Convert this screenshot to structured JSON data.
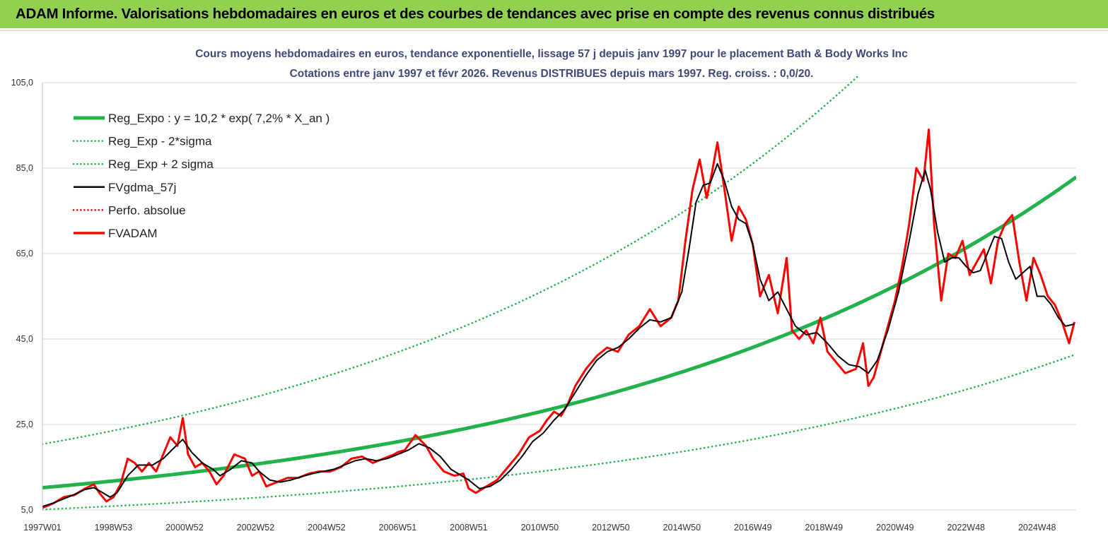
{
  "banner": {
    "title": "ADAM Informe. Valorisations hebdomadaires en euros et des courbes de tendances avec prise en compte des revenus connus distribués"
  },
  "colors": {
    "banner_bg": "#92d050",
    "reg_expo": "#21b24b",
    "sigma_bands": "#21b24b",
    "fvgdma": "#000000",
    "perfo": "#e00000",
    "fvadam": "#ff0000"
  },
  "chart_data": {
    "type": "line",
    "subtitle_line1": "Cours moyens hebdomadaires en euros, tendance exponentielle, lissage 57 j depuis janv 1997 pour le placement Bath & Body Works Inc",
    "subtitle_line2": "Cotations entre janv 1997 et févr 2026. Revenus DISTRIBUES depuis mars 1997. Reg. croiss. : 0,0/20.",
    "ylim": [
      5,
      105
    ],
    "yticks": [
      "105,0",
      "85,0",
      "65,0",
      "45,0",
      "25,0",
      "5,0"
    ],
    "ytick_values": [
      105,
      85,
      65,
      45,
      25,
      5
    ],
    "xlim": [
      1997.0,
      2026.1
    ],
    "xticks": [
      "1997W01",
      "1998W53",
      "2000W52",
      "2002W52",
      "2004W52",
      "2006W51",
      "2008W51",
      "2010W50",
      "2012W50",
      "2014W50",
      "2016W49",
      "2018W49",
      "2020W49",
      "2022W48",
      "2024W48"
    ],
    "xtick_values": [
      1997.0,
      1999.0,
      2001.0,
      2003.0,
      2005.0,
      2007.0,
      2009.0,
      2011.0,
      2013.0,
      2015.0,
      2017.0,
      2019.0,
      2021.0,
      2023.0,
      2025.0
    ],
    "grid": true,
    "legend_position": "top-left",
    "legend": [
      {
        "label": "Reg_Expo : y = 10,2 * exp( 7,2% *  X_an )",
        "style": "solid-thick",
        "color": "#21b24b"
      },
      {
        "label": "Reg_Exp - 2*sigma",
        "style": "dotted",
        "color": "#21b24b"
      },
      {
        "label": "Reg_Exp + 2 sigma",
        "style": "dotted",
        "color": "#21b24b"
      },
      {
        "label": "FVgdma_57j",
        "style": "solid",
        "color": "#000000"
      },
      {
        "label": "Perfo. absolue",
        "style": "dotted",
        "color": "#e00000"
      },
      {
        "label": "FVADAM",
        "style": "solid-thick",
        "color": "#ff0000"
      }
    ],
    "regression": {
      "a": 10.2,
      "k": 0.072,
      "lower_factor": 0.5,
      "upper_factor": 2.0
    },
    "fvadam": {
      "x": [
        1997.0,
        1997.3,
        1997.6,
        1997.9,
        1998.2,
        1998.45,
        1998.6,
        1998.8,
        1999.0,
        1999.2,
        1999.4,
        1999.6,
        1999.8,
        2000.0,
        2000.2,
        2000.4,
        2000.6,
        2000.8,
        2000.95,
        2001.1,
        2001.3,
        2001.5,
        2001.7,
        2001.9,
        2002.1,
        2002.4,
        2002.7,
        2002.9,
        2003.1,
        2003.3,
        2003.6,
        2003.9,
        2004.2,
        2004.5,
        2004.8,
        2005.1,
        2005.4,
        2005.7,
        2006.0,
        2006.3,
        2006.6,
        2006.9,
        2007.0,
        2007.2,
        2007.5,
        2007.8,
        2008.0,
        2008.3,
        2008.6,
        2008.85,
        2009.0,
        2009.2,
        2009.5,
        2009.8,
        2010.1,
        2010.4,
        2010.7,
        2011.0,
        2011.2,
        2011.4,
        2011.6,
        2011.8,
        2012.0,
        2012.3,
        2012.6,
        2012.9,
        2013.2,
        2013.5,
        2013.8,
        2014.1,
        2014.4,
        2014.7,
        2014.9,
        2015.1,
        2015.3,
        2015.5,
        2015.7,
        2015.85,
        2016.0,
        2016.2,
        2016.4,
        2016.6,
        2016.8,
        2017.0,
        2017.2,
        2017.45,
        2017.7,
        2017.95,
        2018.1,
        2018.3,
        2018.5,
        2018.7,
        2018.9,
        2019.1,
        2019.3,
        2019.6,
        2019.9,
        2020.1,
        2020.25,
        2020.4,
        2020.6,
        2020.8,
        2021.0,
        2021.2,
        2021.4,
        2021.6,
        2021.8,
        2021.95,
        2022.1,
        2022.3,
        2022.5,
        2022.7,
        2022.9,
        2023.1,
        2023.3,
        2023.5,
        2023.7,
        2023.9,
        2024.1,
        2024.3,
        2024.5,
        2024.7,
        2024.9,
        2025.1,
        2025.3,
        2025.5,
        2025.7,
        2025.9,
        2026.05
      ],
      "y": [
        5.5,
        6.5,
        8.0,
        8.5,
        10.0,
        11.0,
        9.0,
        7.0,
        8.0,
        11.0,
        17.0,
        16.0,
        14.0,
        16.0,
        14.0,
        18.0,
        22.0,
        20.0,
        26.5,
        18.0,
        15.0,
        16.0,
        14.0,
        11.0,
        13.0,
        18.0,
        17.0,
        13.0,
        14.0,
        10.5,
        11.5,
        12.5,
        12.5,
        13.5,
        14.0,
        14.0,
        15.0,
        17.0,
        17.5,
        16.0,
        17.0,
        18.0,
        18.5,
        19.0,
        22.5,
        20.0,
        17.0,
        14.0,
        13.0,
        13.5,
        10.0,
        9.0,
        10.5,
        12.0,
        15.0,
        18.0,
        22.0,
        23.5,
        26.0,
        28.0,
        27.0,
        30.0,
        34.0,
        38.0,
        41.0,
        43.0,
        42.0,
        46.0,
        48.0,
        52.0,
        48.0,
        50.0,
        54.0,
        68.0,
        80.0,
        87.0,
        78.0,
        84.0,
        91.0,
        80.0,
        68.0,
        76.0,
        73.0,
        67.0,
        55.0,
        60.0,
        51.0,
        64.0,
        47.0,
        45.0,
        47.0,
        44.0,
        50.0,
        42.0,
        40.0,
        37.0,
        38.0,
        44.0,
        34.0,
        36.0,
        42.0,
        48.0,
        54.0,
        62.0,
        72.0,
        85.0,
        82.0,
        94.0,
        72.0,
        54.0,
        65.0,
        64.0,
        68.0,
        60.0,
        63.0,
        66.0,
        58.0,
        68.0,
        72.0,
        74.0,
        63.0,
        54.0,
        64.0,
        60.0,
        55.0,
        53.0,
        49.0,
        44.0,
        49.0
      ]
    },
    "fvgdma_57j": {
      "x": [
        1997.0,
        1997.3,
        1997.6,
        1997.9,
        1998.2,
        1998.45,
        1998.7,
        1998.9,
        1999.1,
        1999.4,
        1999.7,
        1999.9,
        2000.1,
        2000.4,
        2000.7,
        2000.95,
        2001.2,
        2001.5,
        2001.8,
        2002.0,
        2002.3,
        2002.6,
        2002.9,
        2003.1,
        2003.4,
        2003.7,
        2004.0,
        2004.3,
        2004.6,
        2004.9,
        2005.2,
        2005.5,
        2005.8,
        2006.1,
        2006.4,
        2006.7,
        2007.0,
        2007.3,
        2007.6,
        2007.9,
        2008.2,
        2008.5,
        2008.8,
        2009.0,
        2009.3,
        2009.6,
        2009.9,
        2010.2,
        2010.5,
        2010.8,
        2011.1,
        2011.4,
        2011.7,
        2012.0,
        2012.3,
        2012.6,
        2012.9,
        2013.2,
        2013.5,
        2013.8,
        2014.1,
        2014.4,
        2014.7,
        2015.0,
        2015.2,
        2015.4,
        2015.6,
        2015.8,
        2016.0,
        2016.2,
        2016.4,
        2016.6,
        2016.8,
        2017.0,
        2017.2,
        2017.45,
        2017.7,
        2017.95,
        2018.2,
        2018.5,
        2018.8,
        2019.1,
        2019.4,
        2019.7,
        2020.0,
        2020.25,
        2020.5,
        2020.8,
        2021.1,
        2021.4,
        2021.65,
        2021.85,
        2022.0,
        2022.2,
        2022.4,
        2022.6,
        2022.8,
        2023.0,
        2023.2,
        2023.4,
        2023.6,
        2023.8,
        2024.0,
        2024.2,
        2024.4,
        2024.6,
        2024.8,
        2025.0,
        2025.2,
        2025.4,
        2025.6,
        2025.8,
        2026.05
      ],
      "y": [
        5.8,
        6.6,
        7.6,
        8.6,
        9.8,
        10.2,
        9.0,
        8.0,
        9.0,
        13.0,
        15.5,
        15.5,
        15.5,
        17.0,
        19.5,
        21.5,
        18.5,
        16.0,
        14.5,
        13.0,
        14.5,
        16.5,
        16.0,
        14.0,
        12.0,
        11.5,
        12.0,
        12.8,
        13.5,
        14.0,
        14.5,
        15.5,
        16.5,
        17.0,
        16.5,
        17.0,
        18.0,
        19.0,
        20.5,
        19.5,
        17.5,
        14.5,
        13.0,
        12.0,
        10.0,
        10.5,
        12.0,
        14.5,
        17.5,
        21.0,
        23.0,
        26.0,
        28.5,
        32.5,
        36.5,
        40.0,
        42.0,
        43.0,
        45.0,
        47.5,
        49.5,
        49.0,
        50.0,
        56.0,
        66.0,
        77.0,
        81.0,
        81.5,
        86.0,
        82.0,
        76.0,
        73.0,
        72.0,
        67.0,
        59.0,
        54.0,
        56.0,
        52.0,
        48.0,
        46.0,
        46.5,
        44.0,
        41.0,
        39.0,
        38.5,
        37.0,
        40.0,
        47.0,
        56.0,
        68.0,
        79.0,
        84.5,
        80.0,
        70.0,
        63.0,
        64.0,
        64.0,
        62.0,
        60.5,
        61.0,
        65.0,
        69.0,
        68.5,
        63.0,
        59.0,
        60.5,
        62.0,
        55.0,
        55.0,
        53.0,
        50.0,
        48.0,
        48.5
      ]
    }
  }
}
